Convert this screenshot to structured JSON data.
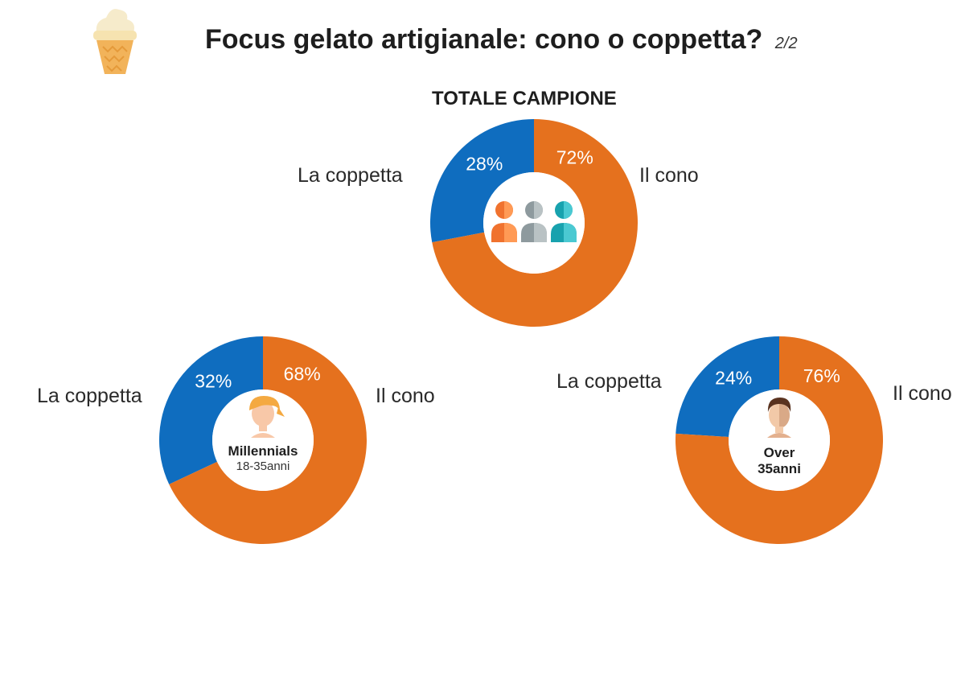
{
  "header": {
    "title": "Focus gelato artigianale: cono o coppetta?",
    "page": "2/2",
    "icon": "ice-cream-cone-icon"
  },
  "colors": {
    "cono": "#E5711E",
    "coppetta": "#0F6DBF"
  },
  "chart_data": [
    {
      "type": "pie",
      "variant": "donut",
      "title": "TOTALE CAMPIONE",
      "categories": [
        "La coppetta",
        "Il cono"
      ],
      "values": [
        28,
        72
      ],
      "value_labels": [
        "28%",
        "72%"
      ],
      "center_icon": "group-of-people-icon",
      "center_label": "",
      "center_sublabel": ""
    },
    {
      "type": "pie",
      "variant": "donut",
      "title": "",
      "categories": [
        "La coppetta",
        "Il cono"
      ],
      "values": [
        32,
        68
      ],
      "value_labels": [
        "32%",
        "68%"
      ],
      "center_icon": "young-person-icon",
      "center_label": "Millennials",
      "center_sublabel": "18-35anni"
    },
    {
      "type": "pie",
      "variant": "donut",
      "title": "",
      "categories": [
        "La coppetta",
        "Il cono"
      ],
      "values": [
        24,
        76
      ],
      "value_labels": [
        "24%",
        "76%"
      ],
      "center_icon": "adult-man-icon",
      "center_label": "Over",
      "center_sublabel": "35anni"
    }
  ]
}
